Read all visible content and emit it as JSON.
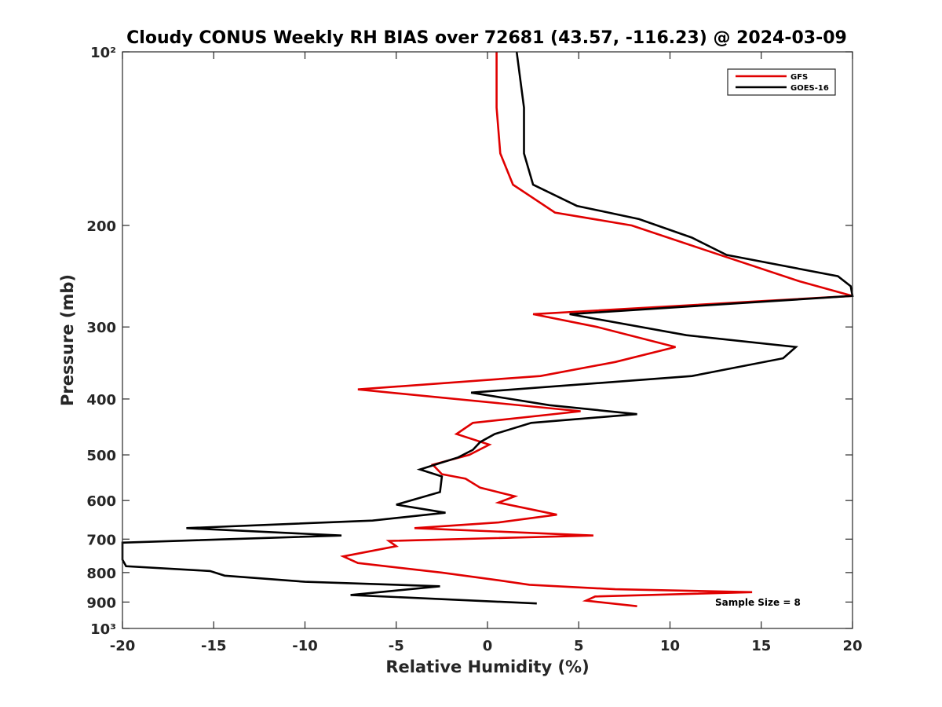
{
  "chart_data": {
    "type": "line",
    "title": "Cloudy CONUS Weekly RH BIAS over 72681 (43.57, -116.23) @ 2024-03-09",
    "xlabel": "Relative Humidity (%)",
    "ylabel": "Pressure (mb)",
    "xlim": [
      -20,
      20
    ],
    "ylim": [
      100,
      1000
    ],
    "y_scale": "log",
    "y_reversed": true,
    "grid": false,
    "legend_position": "top-right",
    "x_ticks": [
      -20,
      -15,
      -10,
      -5,
      0,
      5,
      10,
      15,
      20
    ],
    "x_tick_labels": [
      "-20",
      "-15",
      "-10",
      "-5",
      "0",
      "5",
      "10",
      "15",
      "20"
    ],
    "y_ticks": [
      100,
      200,
      300,
      400,
      500,
      600,
      700,
      800,
      900,
      1000
    ],
    "y_tick_labels": [
      "10²",
      "200",
      "300",
      "400",
      "500",
      "600",
      "700",
      "800",
      "900",
      "10³"
    ],
    "annotation": "Sample Size = 8",
    "series": [
      {
        "name": "GFS",
        "color": "#e00000",
        "points": [
          [
            0.5,
            100
          ],
          [
            0.5,
            125
          ],
          [
            0.7,
            150
          ],
          [
            1.4,
            170
          ],
          [
            3.7,
            190
          ],
          [
            7.9,
            200
          ],
          [
            11.8,
            220
          ],
          [
            17.1,
            250
          ],
          [
            20.0,
            265
          ],
          [
            2.5,
            285
          ],
          [
            6.0,
            300
          ],
          [
            10.3,
            325
          ],
          [
            7.0,
            345
          ],
          [
            2.9,
            365
          ],
          [
            -7.1,
            385
          ],
          [
            5.1,
            420
          ],
          [
            -0.8,
            440
          ],
          [
            -1.7,
            460
          ],
          [
            0.1,
            480
          ],
          [
            -1.0,
            500
          ],
          [
            -3.0,
            520
          ],
          [
            -2.5,
            540
          ],
          [
            -1.2,
            550
          ],
          [
            -0.4,
            570
          ],
          [
            1.5,
            590
          ],
          [
            0.6,
            605
          ],
          [
            3.8,
            635
          ],
          [
            0.6,
            655
          ],
          [
            -4.0,
            670
          ],
          [
            5.8,
            690
          ],
          [
            -5.4,
            705
          ],
          [
            -5.0,
            720
          ],
          [
            -7.9,
            750
          ],
          [
            -7.1,
            770
          ],
          [
            -2.5,
            800
          ],
          [
            0.6,
            825
          ],
          [
            2.3,
            840
          ],
          [
            7.0,
            855
          ],
          [
            14.5,
            865
          ],
          [
            5.9,
            880
          ],
          [
            5.4,
            895
          ],
          [
            8.2,
            915
          ]
        ]
      },
      {
        "name": "GOES-16",
        "color": "#000000",
        "points": [
          [
            1.6,
            100
          ],
          [
            2.0,
            125
          ],
          [
            2.0,
            150
          ],
          [
            2.5,
            170
          ],
          [
            4.9,
            185
          ],
          [
            8.3,
            195
          ],
          [
            11.2,
            210
          ],
          [
            13.1,
            225
          ],
          [
            19.2,
            245
          ],
          [
            19.9,
            255
          ],
          [
            20.0,
            265
          ],
          [
            4.5,
            285
          ],
          [
            10.9,
            310
          ],
          [
            16.9,
            325
          ],
          [
            16.2,
            340
          ],
          [
            11.2,
            365
          ],
          [
            -0.9,
            390
          ],
          [
            3.4,
            410
          ],
          [
            8.2,
            425
          ],
          [
            2.4,
            440
          ],
          [
            0.4,
            460
          ],
          [
            -0.4,
            475
          ],
          [
            -0.8,
            490
          ],
          [
            -1.6,
            505
          ],
          [
            -3.7,
            530
          ],
          [
            -2.5,
            545
          ],
          [
            -2.6,
            580
          ],
          [
            -5.0,
            610
          ],
          [
            -2.3,
            630
          ],
          [
            -6.3,
            650
          ],
          [
            -16.5,
            670
          ],
          [
            -8.0,
            690
          ],
          [
            -20.0,
            710
          ],
          [
            -20.0,
            760
          ],
          [
            -19.8,
            780
          ],
          [
            -15.2,
            795
          ],
          [
            -14.4,
            810
          ],
          [
            -10.0,
            830
          ],
          [
            -2.6,
            845
          ],
          [
            -7.5,
            875
          ],
          [
            2.7,
            905
          ]
        ]
      }
    ]
  }
}
